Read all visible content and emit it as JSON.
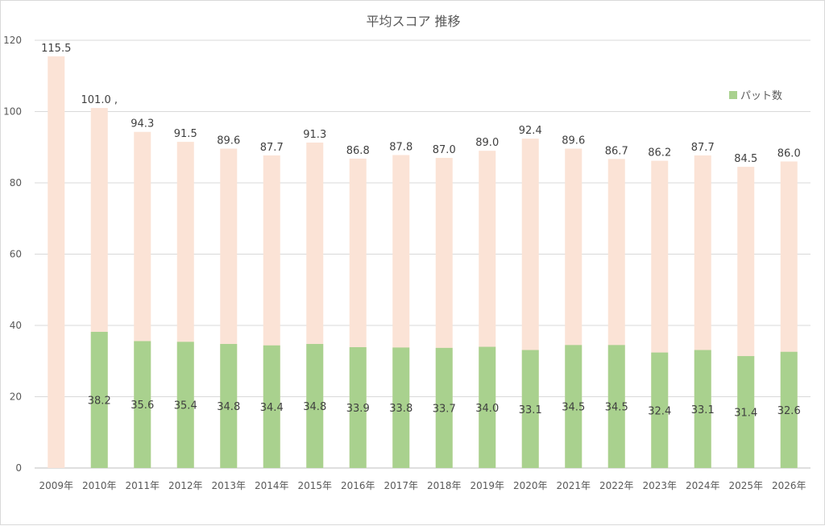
{
  "chart_data": {
    "type": "bar",
    "title": "平均スコア 推移",
    "xlabel": "",
    "ylabel": "",
    "ylim": [
      0,
      120
    ],
    "y_ticks": [
      "0",
      "20",
      "40",
      "60",
      "80",
      "100",
      "120"
    ],
    "categories": [
      "2009年",
      "2010年",
      "2011年",
      "2012年",
      "2013年",
      "2014年",
      "2015年",
      "2016年",
      "2017年",
      "2018年",
      "2019年",
      "2020年",
      "2021年",
      "2022年",
      "2023年",
      "2024年",
      "2025年",
      "2026年"
    ],
    "series": [
      {
        "name": "",
        "role": "total-score",
        "color": "#fbe3d6",
        "values": [
          115.5,
          101.0,
          94.3,
          91.5,
          89.6,
          87.7,
          91.3,
          86.8,
          87.8,
          87.0,
          89.0,
          92.4,
          89.6,
          86.7,
          86.2,
          87.7,
          84.5,
          86.0
        ],
        "labels": [
          "115.5",
          "101.0 ,",
          "94.3",
          "91.5",
          "89.6",
          "87.7",
          "91.3",
          "86.8",
          "87.8",
          "87.0",
          "89.0",
          "92.4",
          "89.6",
          "86.7",
          "86.2",
          "87.7",
          "84.5",
          "86.0"
        ]
      },
      {
        "name": "パット数",
        "role": "putts",
        "color": "#a9d18e",
        "values": [
          null,
          38.2,
          35.6,
          35.4,
          34.8,
          34.4,
          34.8,
          33.9,
          33.8,
          33.7,
          34.0,
          33.1,
          34.5,
          34.5,
          32.4,
          33.1,
          31.4,
          32.6
        ],
        "labels": [
          "",
          "38.2",
          "35.6",
          "35.4",
          "34.8",
          "34.4",
          "34.8",
          "33.9",
          "33.8",
          "33.7",
          "34.0",
          "33.1",
          "34.5",
          "34.5",
          "32.4",
          "33.1",
          "31.4",
          "32.6"
        ]
      }
    ],
    "grid": true,
    "legend_position": "top-right",
    "legend": [
      {
        "label": "パット数",
        "color": "#a9d18e"
      }
    ]
  }
}
